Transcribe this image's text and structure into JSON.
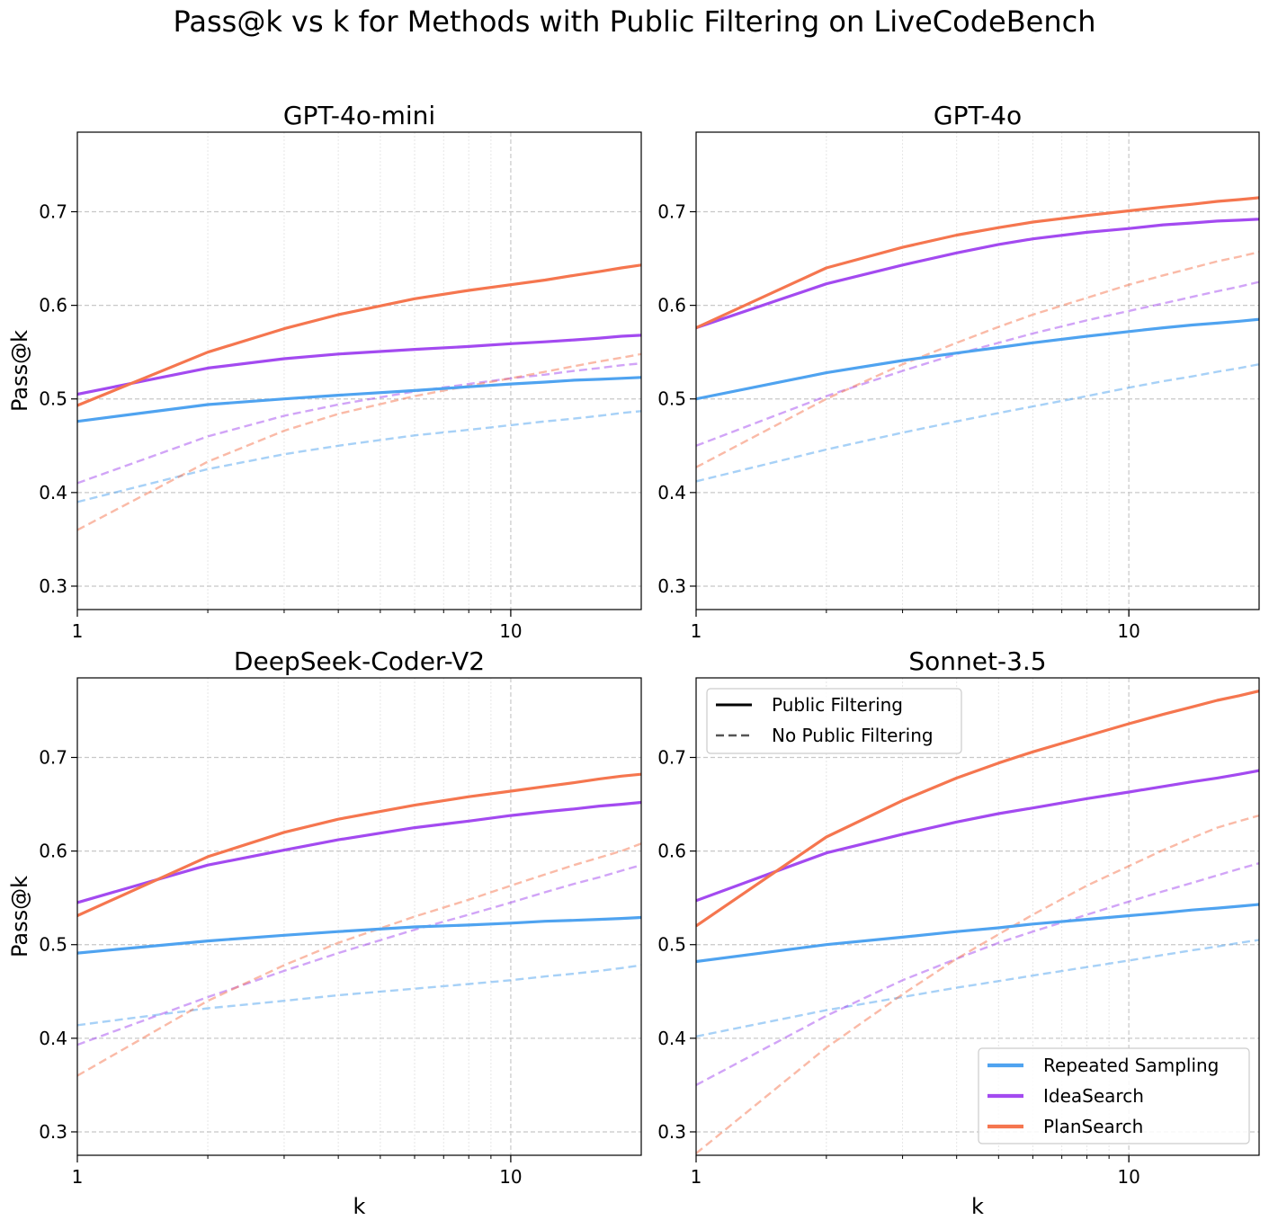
{
  "figure_title": "Pass@k vs k for Methods with Public Filtering on LiveCodeBench",
  "colors": {
    "repeated_sampling": "#4fa3f0",
    "ideasearch": "#a34af0",
    "plansearch": "#f5764f"
  },
  "legend_style": {
    "items": [
      {
        "label": "Public Filtering",
        "linestyle": "solid"
      },
      {
        "label": "No Public Filtering",
        "linestyle": "dashed"
      }
    ],
    "placement": "upper-left of Sonnet-3.5 panel"
  },
  "legend_methods": {
    "items": [
      {
        "label": "Repeated Sampling",
        "color_key": "repeated_sampling"
      },
      {
        "label": "IdeaSearch",
        "color_key": "ideasearch"
      },
      {
        "label": "PlanSearch",
        "color_key": "plansearch"
      }
    ],
    "placement": "lower-right of Sonnet-3.5 panel"
  },
  "chart_data": [
    {
      "type": "line",
      "title": "GPT-4o-mini",
      "xlabel": "",
      "ylabel": "Pass@k",
      "xscale": "log",
      "xlim": [
        1,
        20
      ],
      "ylim": [
        0.275,
        0.785
      ],
      "xticks": [
        "1",
        "10"
      ],
      "yticks": [
        "0.3",
        "0.4",
        "0.5",
        "0.6",
        "0.7"
      ],
      "grid": true,
      "x": [
        1,
        2,
        3,
        4,
        6,
        8,
        10,
        12,
        14,
        16,
        18,
        20
      ],
      "series": [
        {
          "name": "Repeated Sampling",
          "color_key": "repeated_sampling",
          "filtering": "public",
          "values": [
            0.476,
            0.494,
            0.5,
            0.504,
            0.509,
            0.513,
            0.516,
            0.518,
            0.52,
            0.521,
            0.522,
            0.523
          ]
        },
        {
          "name": "IdeaSearch",
          "color_key": "ideasearch",
          "filtering": "public",
          "values": [
            0.505,
            0.533,
            0.543,
            0.548,
            0.553,
            0.556,
            0.559,
            0.561,
            0.563,
            0.565,
            0.567,
            0.568
          ]
        },
        {
          "name": "PlanSearch",
          "color_key": "plansearch",
          "filtering": "public",
          "values": [
            0.493,
            0.55,
            0.575,
            0.59,
            0.607,
            0.616,
            0.622,
            0.627,
            0.632,
            0.636,
            0.64,
            0.643
          ]
        },
        {
          "name": "Repeated Sampling",
          "color_key": "repeated_sampling",
          "filtering": "none",
          "values": [
            0.39,
            0.425,
            0.441,
            0.45,
            0.461,
            0.467,
            0.472,
            0.476,
            0.479,
            0.482,
            0.485,
            0.487
          ]
        },
        {
          "name": "IdeaSearch",
          "color_key": "ideasearch",
          "filtering": "none",
          "values": [
            0.41,
            0.46,
            0.482,
            0.494,
            0.508,
            0.516,
            0.522,
            0.526,
            0.53,
            0.533,
            0.536,
            0.538
          ]
        },
        {
          "name": "PlanSearch",
          "color_key": "plansearch",
          "filtering": "none",
          "values": [
            0.36,
            0.433,
            0.466,
            0.484,
            0.503,
            0.514,
            0.522,
            0.529,
            0.535,
            0.54,
            0.544,
            0.548
          ]
        }
      ]
    },
    {
      "type": "line",
      "title": "GPT-4o",
      "xlabel": "",
      "ylabel": "",
      "xscale": "log",
      "xlim": [
        1,
        20
      ],
      "ylim": [
        0.275,
        0.785
      ],
      "xticks": [
        "1",
        "10"
      ],
      "yticks": [
        "0.3",
        "0.4",
        "0.5",
        "0.6",
        "0.7"
      ],
      "grid": true,
      "x": [
        1,
        2,
        3,
        4,
        5,
        6,
        8,
        10,
        12,
        14,
        16,
        18,
        20
      ],
      "series": [
        {
          "name": "Repeated Sampling",
          "color_key": "repeated_sampling",
          "filtering": "public",
          "values": [
            0.5,
            0.528,
            0.541,
            0.549,
            0.555,
            0.56,
            0.567,
            0.572,
            0.576,
            0.579,
            0.581,
            0.583,
            0.585
          ]
        },
        {
          "name": "IdeaSearch",
          "color_key": "ideasearch",
          "filtering": "public",
          "values": [
            0.576,
            0.623,
            0.643,
            0.656,
            0.665,
            0.671,
            0.678,
            0.682,
            0.686,
            0.688,
            0.69,
            0.691,
            0.692
          ]
        },
        {
          "name": "PlanSearch",
          "color_key": "plansearch",
          "filtering": "public",
          "values": [
            0.576,
            0.64,
            0.662,
            0.675,
            0.683,
            0.689,
            0.696,
            0.701,
            0.705,
            0.708,
            0.711,
            0.713,
            0.715
          ]
        },
        {
          "name": "Repeated Sampling",
          "color_key": "repeated_sampling",
          "filtering": "none",
          "values": [
            0.412,
            0.446,
            0.464,
            0.476,
            0.485,
            0.492,
            0.503,
            0.512,
            0.519,
            0.524,
            0.529,
            0.533,
            0.537
          ]
        },
        {
          "name": "IdeaSearch",
          "color_key": "ideasearch",
          "filtering": "none",
          "values": [
            0.45,
            0.503,
            0.53,
            0.548,
            0.56,
            0.57,
            0.584,
            0.594,
            0.602,
            0.609,
            0.615,
            0.62,
            0.625
          ]
        },
        {
          "name": "PlanSearch",
          "color_key": "plansearch",
          "filtering": "none",
          "values": [
            0.427,
            0.5,
            0.537,
            0.56,
            0.577,
            0.59,
            0.608,
            0.622,
            0.632,
            0.64,
            0.647,
            0.652,
            0.657
          ]
        }
      ]
    },
    {
      "type": "line",
      "title": "DeepSeek-Coder-V2",
      "xlabel": "k",
      "ylabel": "Pass@k",
      "xscale": "log",
      "xlim": [
        1,
        20
      ],
      "ylim": [
        0.275,
        0.785
      ],
      "xticks": [
        "1",
        "10"
      ],
      "yticks": [
        "0.3",
        "0.4",
        "0.5",
        "0.6",
        "0.7"
      ],
      "grid": true,
      "x": [
        1,
        2,
        3,
        4,
        6,
        8,
        10,
        12,
        14,
        16,
        18,
        20
      ],
      "series": [
        {
          "name": "Repeated Sampling",
          "color_key": "repeated_sampling",
          "filtering": "public",
          "values": [
            0.491,
            0.504,
            0.51,
            0.514,
            0.519,
            0.521,
            0.523,
            0.525,
            0.526,
            0.527,
            0.528,
            0.529
          ]
        },
        {
          "name": "IdeaSearch",
          "color_key": "ideasearch",
          "filtering": "public",
          "values": [
            0.545,
            0.585,
            0.601,
            0.612,
            0.625,
            0.632,
            0.638,
            0.642,
            0.645,
            0.648,
            0.65,
            0.652
          ]
        },
        {
          "name": "PlanSearch",
          "color_key": "plansearch",
          "filtering": "public",
          "values": [
            0.531,
            0.594,
            0.62,
            0.634,
            0.649,
            0.658,
            0.664,
            0.669,
            0.673,
            0.677,
            0.68,
            0.682
          ]
        },
        {
          "name": "Repeated Sampling",
          "color_key": "repeated_sampling",
          "filtering": "none",
          "values": [
            0.414,
            0.432,
            0.44,
            0.446,
            0.453,
            0.458,
            0.462,
            0.466,
            0.469,
            0.472,
            0.475,
            0.478
          ]
        },
        {
          "name": "IdeaSearch",
          "color_key": "ideasearch",
          "filtering": "none",
          "values": [
            0.393,
            0.444,
            0.472,
            0.491,
            0.516,
            0.532,
            0.545,
            0.556,
            0.565,
            0.572,
            0.579,
            0.585
          ]
        },
        {
          "name": "PlanSearch",
          "color_key": "plansearch",
          "filtering": "none",
          "values": [
            0.36,
            0.44,
            0.478,
            0.502,
            0.53,
            0.548,
            0.563,
            0.575,
            0.585,
            0.593,
            0.6,
            0.608
          ]
        }
      ]
    },
    {
      "type": "line",
      "title": "Sonnet-3.5",
      "xlabel": "k",
      "ylabel": "",
      "xscale": "log",
      "xlim": [
        1,
        20
      ],
      "ylim": [
        0.275,
        0.785
      ],
      "xticks": [
        "1",
        "10"
      ],
      "yticks": [
        "0.3",
        "0.4",
        "0.5",
        "0.6",
        "0.7"
      ],
      "grid": true,
      "x": [
        1,
        2,
        3,
        4,
        5,
        6,
        8,
        10,
        12,
        14,
        16,
        18,
        20
      ],
      "series": [
        {
          "name": "Repeated Sampling",
          "color_key": "repeated_sampling",
          "filtering": "public",
          "values": [
            0.482,
            0.5,
            0.508,
            0.514,
            0.518,
            0.522,
            0.527,
            0.531,
            0.534,
            0.537,
            0.539,
            0.541,
            0.543
          ]
        },
        {
          "name": "IdeaSearch",
          "color_key": "ideasearch",
          "filtering": "public",
          "values": [
            0.547,
            0.598,
            0.618,
            0.631,
            0.64,
            0.646,
            0.656,
            0.663,
            0.669,
            0.674,
            0.678,
            0.682,
            0.686
          ]
        },
        {
          "name": "PlanSearch",
          "color_key": "plansearch",
          "filtering": "public",
          "values": [
            0.52,
            0.615,
            0.654,
            0.678,
            0.694,
            0.706,
            0.723,
            0.736,
            0.746,
            0.754,
            0.761,
            0.766,
            0.771
          ]
        },
        {
          "name": "Repeated Sampling",
          "color_key": "repeated_sampling",
          "filtering": "none",
          "values": [
            0.402,
            0.43,
            0.444,
            0.454,
            0.461,
            0.467,
            0.476,
            0.483,
            0.489,
            0.494,
            0.498,
            0.502,
            0.505
          ]
        },
        {
          "name": "IdeaSearch",
          "color_key": "ideasearch",
          "filtering": "none",
          "values": [
            0.35,
            0.424,
            0.462,
            0.485,
            0.502,
            0.514,
            0.532,
            0.546,
            0.557,
            0.566,
            0.574,
            0.581,
            0.587
          ]
        },
        {
          "name": "PlanSearch",
          "color_key": "plansearch",
          "filtering": "none",
          "values": [
            0.277,
            0.39,
            0.447,
            0.485,
            0.511,
            0.532,
            0.563,
            0.584,
            0.601,
            0.614,
            0.625,
            0.632,
            0.638
          ]
        }
      ]
    }
  ]
}
